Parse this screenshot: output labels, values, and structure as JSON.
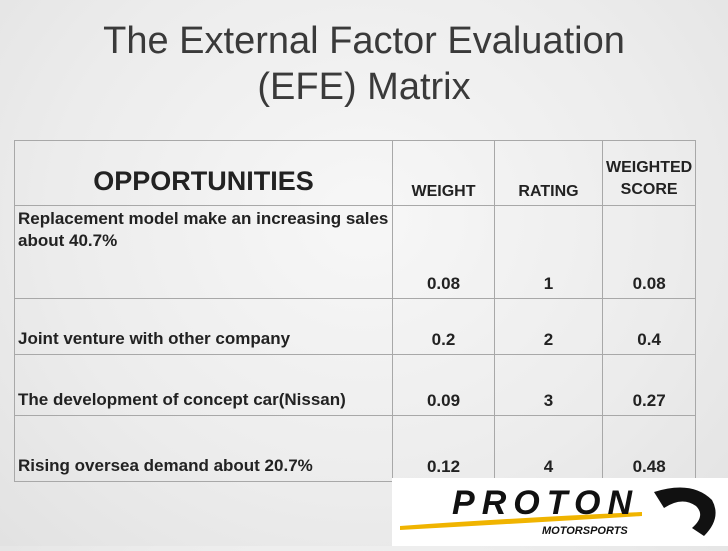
{
  "header": {
    "title_lines": [
      "The External Factor Evaluation",
      "(EFE) Matrix"
    ]
  },
  "table": {
    "columns": [
      "OPPORTUNITIES",
      "WEIGHT",
      "RATING",
      "WEIGHTED SCORE"
    ],
    "rows": [
      [
        "Replacement model make an increasing sales about 40.7%",
        0.08,
        1,
        0.08
      ],
      [
        "Joint venture with other company",
        0.2,
        2,
        0.4
      ],
      [
        "The development of concept car(Nissan)",
        0.09,
        3,
        0.27
      ],
      [
        "Rising oversea demand about 20.7%",
        0.12,
        4,
        0.48
      ]
    ]
  },
  "logo": {
    "name": "PROTON",
    "tagline": "MOTORSPORTS"
  }
}
